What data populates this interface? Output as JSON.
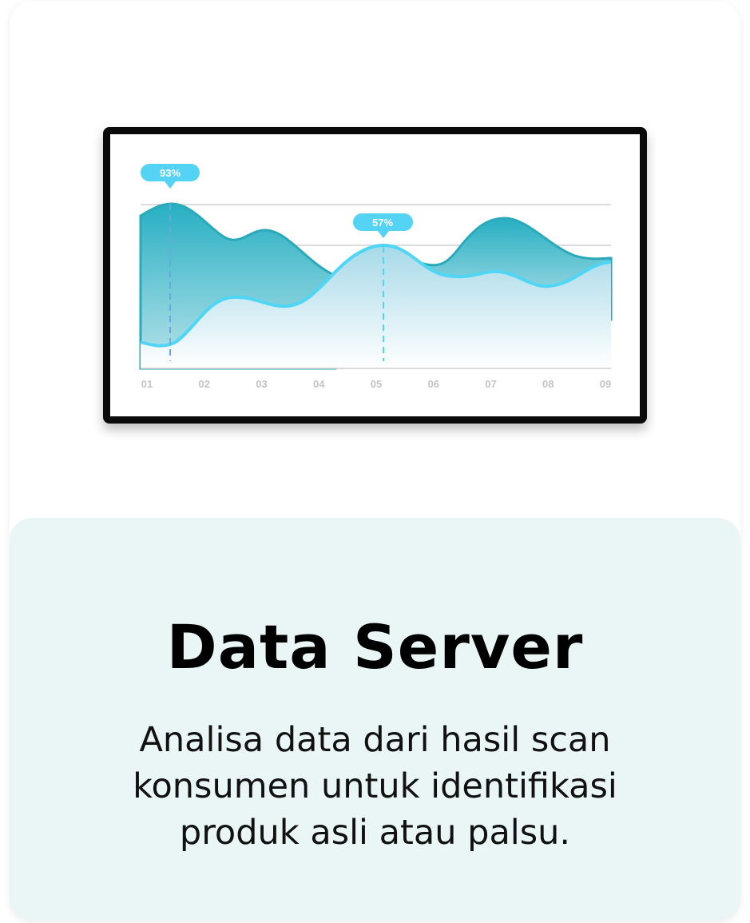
{
  "illustration": {
    "x_labels": [
      "01",
      "02",
      "03",
      "04",
      "05",
      "06",
      "07",
      "08",
      "09"
    ],
    "callouts": [
      "93%",
      "57%"
    ],
    "colors": {
      "dark_area": "#2ab3c4",
      "light_line": "#4fd6f5",
      "callout": "#55d3f5",
      "grid": "#c8c8c8",
      "tick_label": "#c4c4c4"
    }
  },
  "card": {
    "title": "Data Server",
    "description": "Analisa data dari hasil scan konsumen untuk identifikasi produk asli atau palsu."
  }
}
